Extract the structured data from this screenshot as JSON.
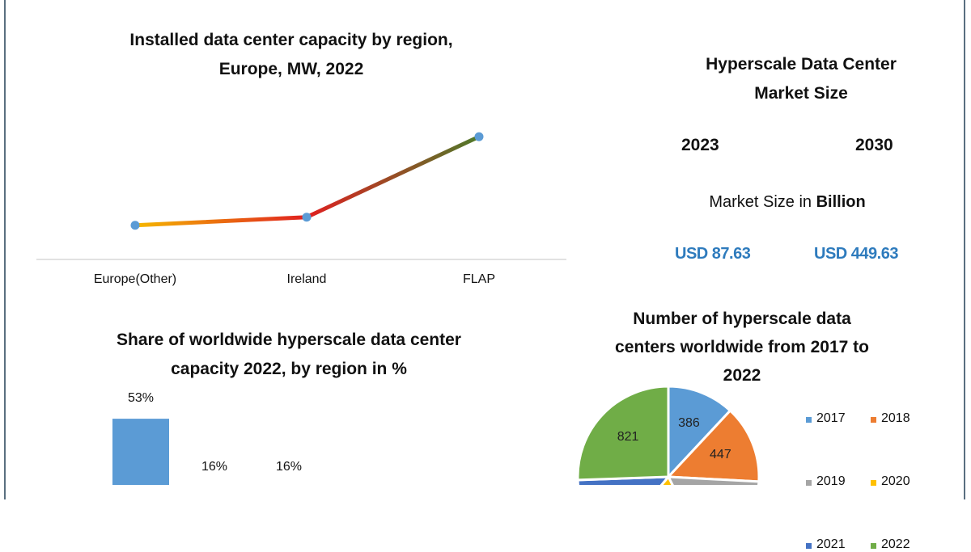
{
  "chart_data": [
    {
      "type": "line",
      "title": "Installed data center capacity by region, Europe, MW, 2022",
      "categories": [
        "Europe(Other)",
        "Ireland",
        "FLAP"
      ],
      "values": [
        42,
        52,
        151
      ],
      "ylim": [
        0,
        170
      ],
      "grid": false,
      "line_colors": [
        "#f5b800",
        "#e02020",
        "#4f7a2a"
      ],
      "marker_color": "#5b9bd5"
    },
    {
      "type": "bar",
      "title": "Share of worldwide hyperscale data center capacity 2022, by region in %",
      "values": [
        53,
        16,
        16
      ],
      "data_labels": [
        "53%",
        "16%",
        "16%"
      ],
      "ylim": [
        0,
        60
      ],
      "bar_color": "#5b9bd5"
    },
    {
      "type": "pie",
      "title": "Number of hyperscale data centers worldwide from 2017 to 2022",
      "slices": [
        {
          "label": "2017",
          "value": 386,
          "color": "#5b9bd5"
        },
        {
          "label": "2018",
          "value": 447,
          "color": "#ed7d31"
        },
        {
          "label": "2019",
          "value": null,
          "color": "#a5a5a5"
        },
        {
          "label": "2020",
          "value": null,
          "color": "#ffc000"
        },
        {
          "label": "2021",
          "value": null,
          "color": "#4472c4"
        },
        {
          "label": "2022",
          "value": 821,
          "color": "#70ad47"
        }
      ],
      "legend": "right"
    }
  ],
  "market": {
    "title_line1": "Hyperscale Data Center",
    "title_line2": "Market Size",
    "year1": "2023",
    "year2": "2030",
    "unit_prefix": "Market Size in ",
    "unit_bold": "Billion",
    "value1": "USD 87.63",
    "value2": "USD 449.63"
  },
  "titles": {
    "line_1": "Installed data center capacity by region,",
    "line_2": "Europe, MW, 2022",
    "bar_1": "Share of worldwide hyperscale data center",
    "bar_2": "capacity 2022, by region in %",
    "pie_1": "Number of hyperscale data",
    "pie_2": "centers worldwide from 2017 to",
    "pie_3": "2022"
  }
}
